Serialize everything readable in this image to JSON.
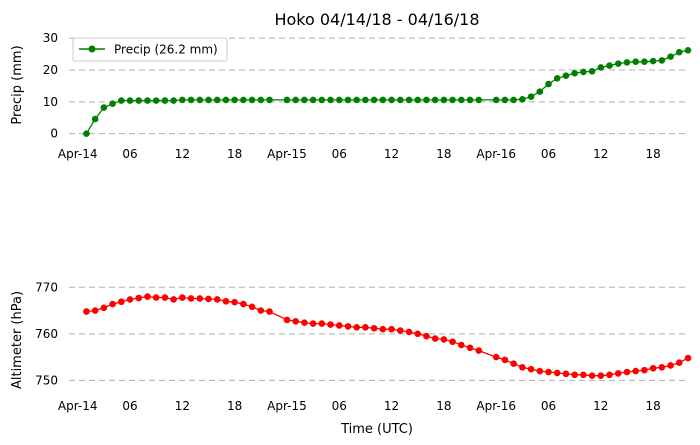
{
  "chart_data": [
    {
      "type": "line",
      "title": "Hoko 04/14/18 - 04/16/18",
      "xlabel": "",
      "ylabel": "Precip (mm)",
      "ylim": [
        -2,
        31
      ],
      "yticks": [
        0,
        10,
        20,
        30
      ],
      "xlim": [
        -1,
        70
      ],
      "xticks": [
        {
          "h": 0,
          "label": "Apr-14"
        },
        {
          "h": 6,
          "label": "06"
        },
        {
          "h": 12,
          "label": "12"
        },
        {
          "h": 18,
          "label": "18"
        },
        {
          "h": 24,
          "label": "Apr-15"
        },
        {
          "h": 30,
          "label": "06"
        },
        {
          "h": 36,
          "label": "12"
        },
        {
          "h": 42,
          "label": "18"
        },
        {
          "h": 48,
          "label": "Apr-16"
        },
        {
          "h": 54,
          "label": "06"
        },
        {
          "h": 60,
          "label": "12"
        },
        {
          "h": 66,
          "label": "18"
        }
      ],
      "grid": "y",
      "legend": "upper-left",
      "series": [
        {
          "name": "Precip (26.2 mm)",
          "color": "#008000",
          "x": [
            1,
            2,
            3,
            4,
            5,
            6,
            7,
            8,
            9,
            10,
            11,
            12,
            13,
            14,
            15,
            16,
            17,
            18,
            19,
            20,
            21,
            22,
            24,
            25,
            26,
            27,
            28,
            29,
            30,
            31,
            32,
            33,
            34,
            35,
            36,
            37,
            38,
            39,
            40,
            41,
            42,
            43,
            44,
            45,
            46,
            48,
            49,
            50,
            51,
            52,
            53,
            54,
            55,
            56,
            57,
            58,
            59,
            60,
            61,
            62,
            63,
            64,
            65,
            66,
            67,
            68,
            69,
            70
          ],
          "y": [
            0,
            4.6,
            8.2,
            9.4,
            10.4,
            10.4,
            10.4,
            10.4,
            10.4,
            10.4,
            10.4,
            10.6,
            10.6,
            10.6,
            10.6,
            10.6,
            10.6,
            10.6,
            10.6,
            10.6,
            10.6,
            10.6,
            10.6,
            10.6,
            10.6,
            10.6,
            10.6,
            10.6,
            10.6,
            10.6,
            10.6,
            10.6,
            10.6,
            10.6,
            10.6,
            10.6,
            10.6,
            10.6,
            10.6,
            10.6,
            10.6,
            10.6,
            10.6,
            10.6,
            10.6,
            10.6,
            10.6,
            10.6,
            10.8,
            11.6,
            13.2,
            15.6,
            17.4,
            18.2,
            19.0,
            19.4,
            19.6,
            20.8,
            21.4,
            22.0,
            22.4,
            22.6,
            22.6,
            22.8,
            23.0,
            24.2,
            25.6,
            26.2
          ]
        }
      ]
    },
    {
      "type": "line",
      "title": "",
      "xlabel": "Time (UTC)",
      "ylabel": "Altimeter (hPa)",
      "ylim": [
        747.5,
        772
      ],
      "yticks": [
        750,
        760,
        770
      ],
      "xlim": [
        -1,
        70
      ],
      "xticks": [
        {
          "h": 0,
          "label": "Apr-14"
        },
        {
          "h": 6,
          "label": "06"
        },
        {
          "h": 12,
          "label": "12"
        },
        {
          "h": 18,
          "label": "18"
        },
        {
          "h": 24,
          "label": "Apr-15"
        },
        {
          "h": 30,
          "label": "06"
        },
        {
          "h": 36,
          "label": "12"
        },
        {
          "h": 42,
          "label": "18"
        },
        {
          "h": 48,
          "label": "Apr-16"
        },
        {
          "h": 54,
          "label": "06"
        },
        {
          "h": 60,
          "label": "12"
        },
        {
          "h": 66,
          "label": "18"
        }
      ],
      "grid": "y",
      "series": [
        {
          "name": "",
          "color": "#ff0000",
          "x": [
            1,
            2,
            3,
            4,
            5,
            6,
            7,
            8,
            9,
            10,
            11,
            12,
            13,
            14,
            15,
            16,
            17,
            18,
            19,
            20,
            21,
            22,
            24,
            25,
            26,
            27,
            28,
            29,
            30,
            31,
            32,
            33,
            34,
            35,
            36,
            37,
            38,
            39,
            40,
            41,
            42,
            43,
            44,
            45,
            46,
            48,
            49,
            50,
            51,
            52,
            53,
            54,
            55,
            56,
            57,
            58,
            59,
            60,
            61,
            62,
            63,
            64,
            65,
            66,
            67,
            68,
            69,
            70
          ],
          "y": [
            764.8,
            765.0,
            765.6,
            766.4,
            766.9,
            767.4,
            767.7,
            768.0,
            767.8,
            767.8,
            767.4,
            767.8,
            767.6,
            767.6,
            767.5,
            767.4,
            767.0,
            766.8,
            766.4,
            765.8,
            765.0,
            764.8,
            763.0,
            762.7,
            762.4,
            762.2,
            762.2,
            762.0,
            761.8,
            761.6,
            761.4,
            761.4,
            761.2,
            761.0,
            761.0,
            760.7,
            760.4,
            760.0,
            759.5,
            759.0,
            758.8,
            758.3,
            757.6,
            757.0,
            756.4,
            755.0,
            754.4,
            753.6,
            752.8,
            752.4,
            752.0,
            751.8,
            751.6,
            751.4,
            751.2,
            751.2,
            751.0,
            751.0,
            751.2,
            751.5,
            751.8,
            752.0,
            752.2,
            752.6,
            752.8,
            753.2,
            753.8,
            754.8
          ]
        }
      ]
    }
  ]
}
